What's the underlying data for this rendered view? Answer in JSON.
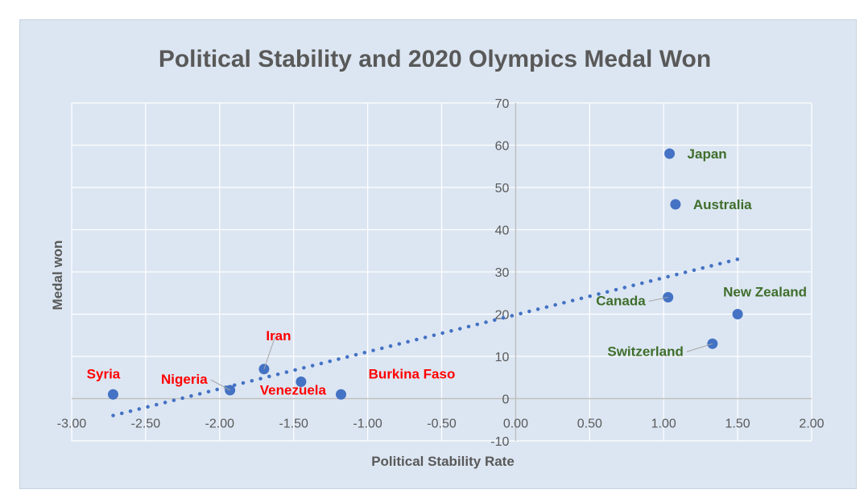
{
  "chart_data": {
    "type": "scatter",
    "title": "Political Stability and 2020 Olympics Medal Won",
    "xlabel": "Political Stability Rate",
    "ylabel": "Medal won",
    "xlim": [
      -3.0,
      2.0
    ],
    "ylim": [
      -10,
      70
    ],
    "x_ticks": [
      "-3.00",
      "-2.50",
      "-2.00",
      "-1.50",
      "-1.00",
      "-0.50",
      "0.00",
      "0.50",
      "1.00",
      "1.50",
      "2.00"
    ],
    "y_ticks": [
      "-10",
      "0",
      "10",
      "20",
      "30",
      "40",
      "50",
      "60",
      "70"
    ],
    "grid": true,
    "points": [
      {
        "label": "Syria",
        "x": -2.72,
        "y": 1,
        "color": "#ff0000"
      },
      {
        "label": "Nigeria",
        "x": -1.93,
        "y": 2,
        "color": "#ff0000"
      },
      {
        "label": "Iran",
        "x": -1.7,
        "y": 7,
        "color": "#ff0000"
      },
      {
        "label": "Venezuela",
        "x": -1.45,
        "y": 4,
        "color": "#ff0000"
      },
      {
        "label": "Burkina Faso",
        "x": -1.18,
        "y": 1,
        "color": "#ff0000"
      },
      {
        "label": "Canada",
        "x": 1.03,
        "y": 24,
        "color": "#3f6e2c"
      },
      {
        "label": "Japan",
        "x": 1.04,
        "y": 58,
        "color": "#3f6e2c"
      },
      {
        "label": "Australia",
        "x": 1.08,
        "y": 46,
        "color": "#3f6e2c"
      },
      {
        "label": "Switzerland",
        "x": 1.33,
        "y": 13,
        "color": "#3f6e2c"
      },
      {
        "label": "New Zealand",
        "x": 1.5,
        "y": 20,
        "color": "#3f6e2c"
      }
    ],
    "trendline": {
      "style": "dotted",
      "x": [
        -2.72,
        1.5
      ],
      "y": [
        -4,
        33
      ]
    },
    "colors": {
      "marker": "#4472c4",
      "trendline": "#4472c4",
      "background": "#dce6f2",
      "grid": "#ffffff"
    }
  }
}
